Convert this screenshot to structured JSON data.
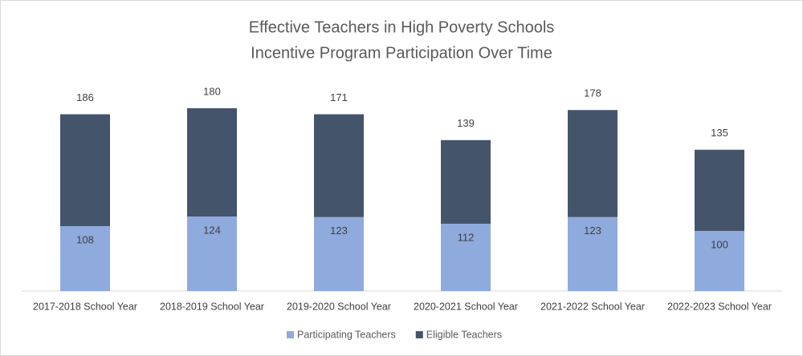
{
  "chart_data": {
    "type": "stacked_bar",
    "title": "Effective Teachers in High Poverty Schools",
    "subtitle": "Incentive Program Participation Over Time",
    "categories": [
      "2017-2018 School Year",
      "2018-2019 School Year",
      "2019-2020 School Year",
      "2020-2021 School Year",
      "2021-2022 School Year",
      "2022-2023 School Year"
    ],
    "series": [
      {
        "name": "Participating Teachers",
        "color": "#8faadc",
        "values": [
          108,
          124,
          123,
          112,
          123,
          100
        ]
      },
      {
        "name": "Eligible Teachers",
        "color": "#44546a",
        "values": [
          186,
          180,
          171,
          139,
          178,
          135
        ]
      }
    ],
    "ylim": [
      0,
      350
    ],
    "legend": "bottom"
  }
}
